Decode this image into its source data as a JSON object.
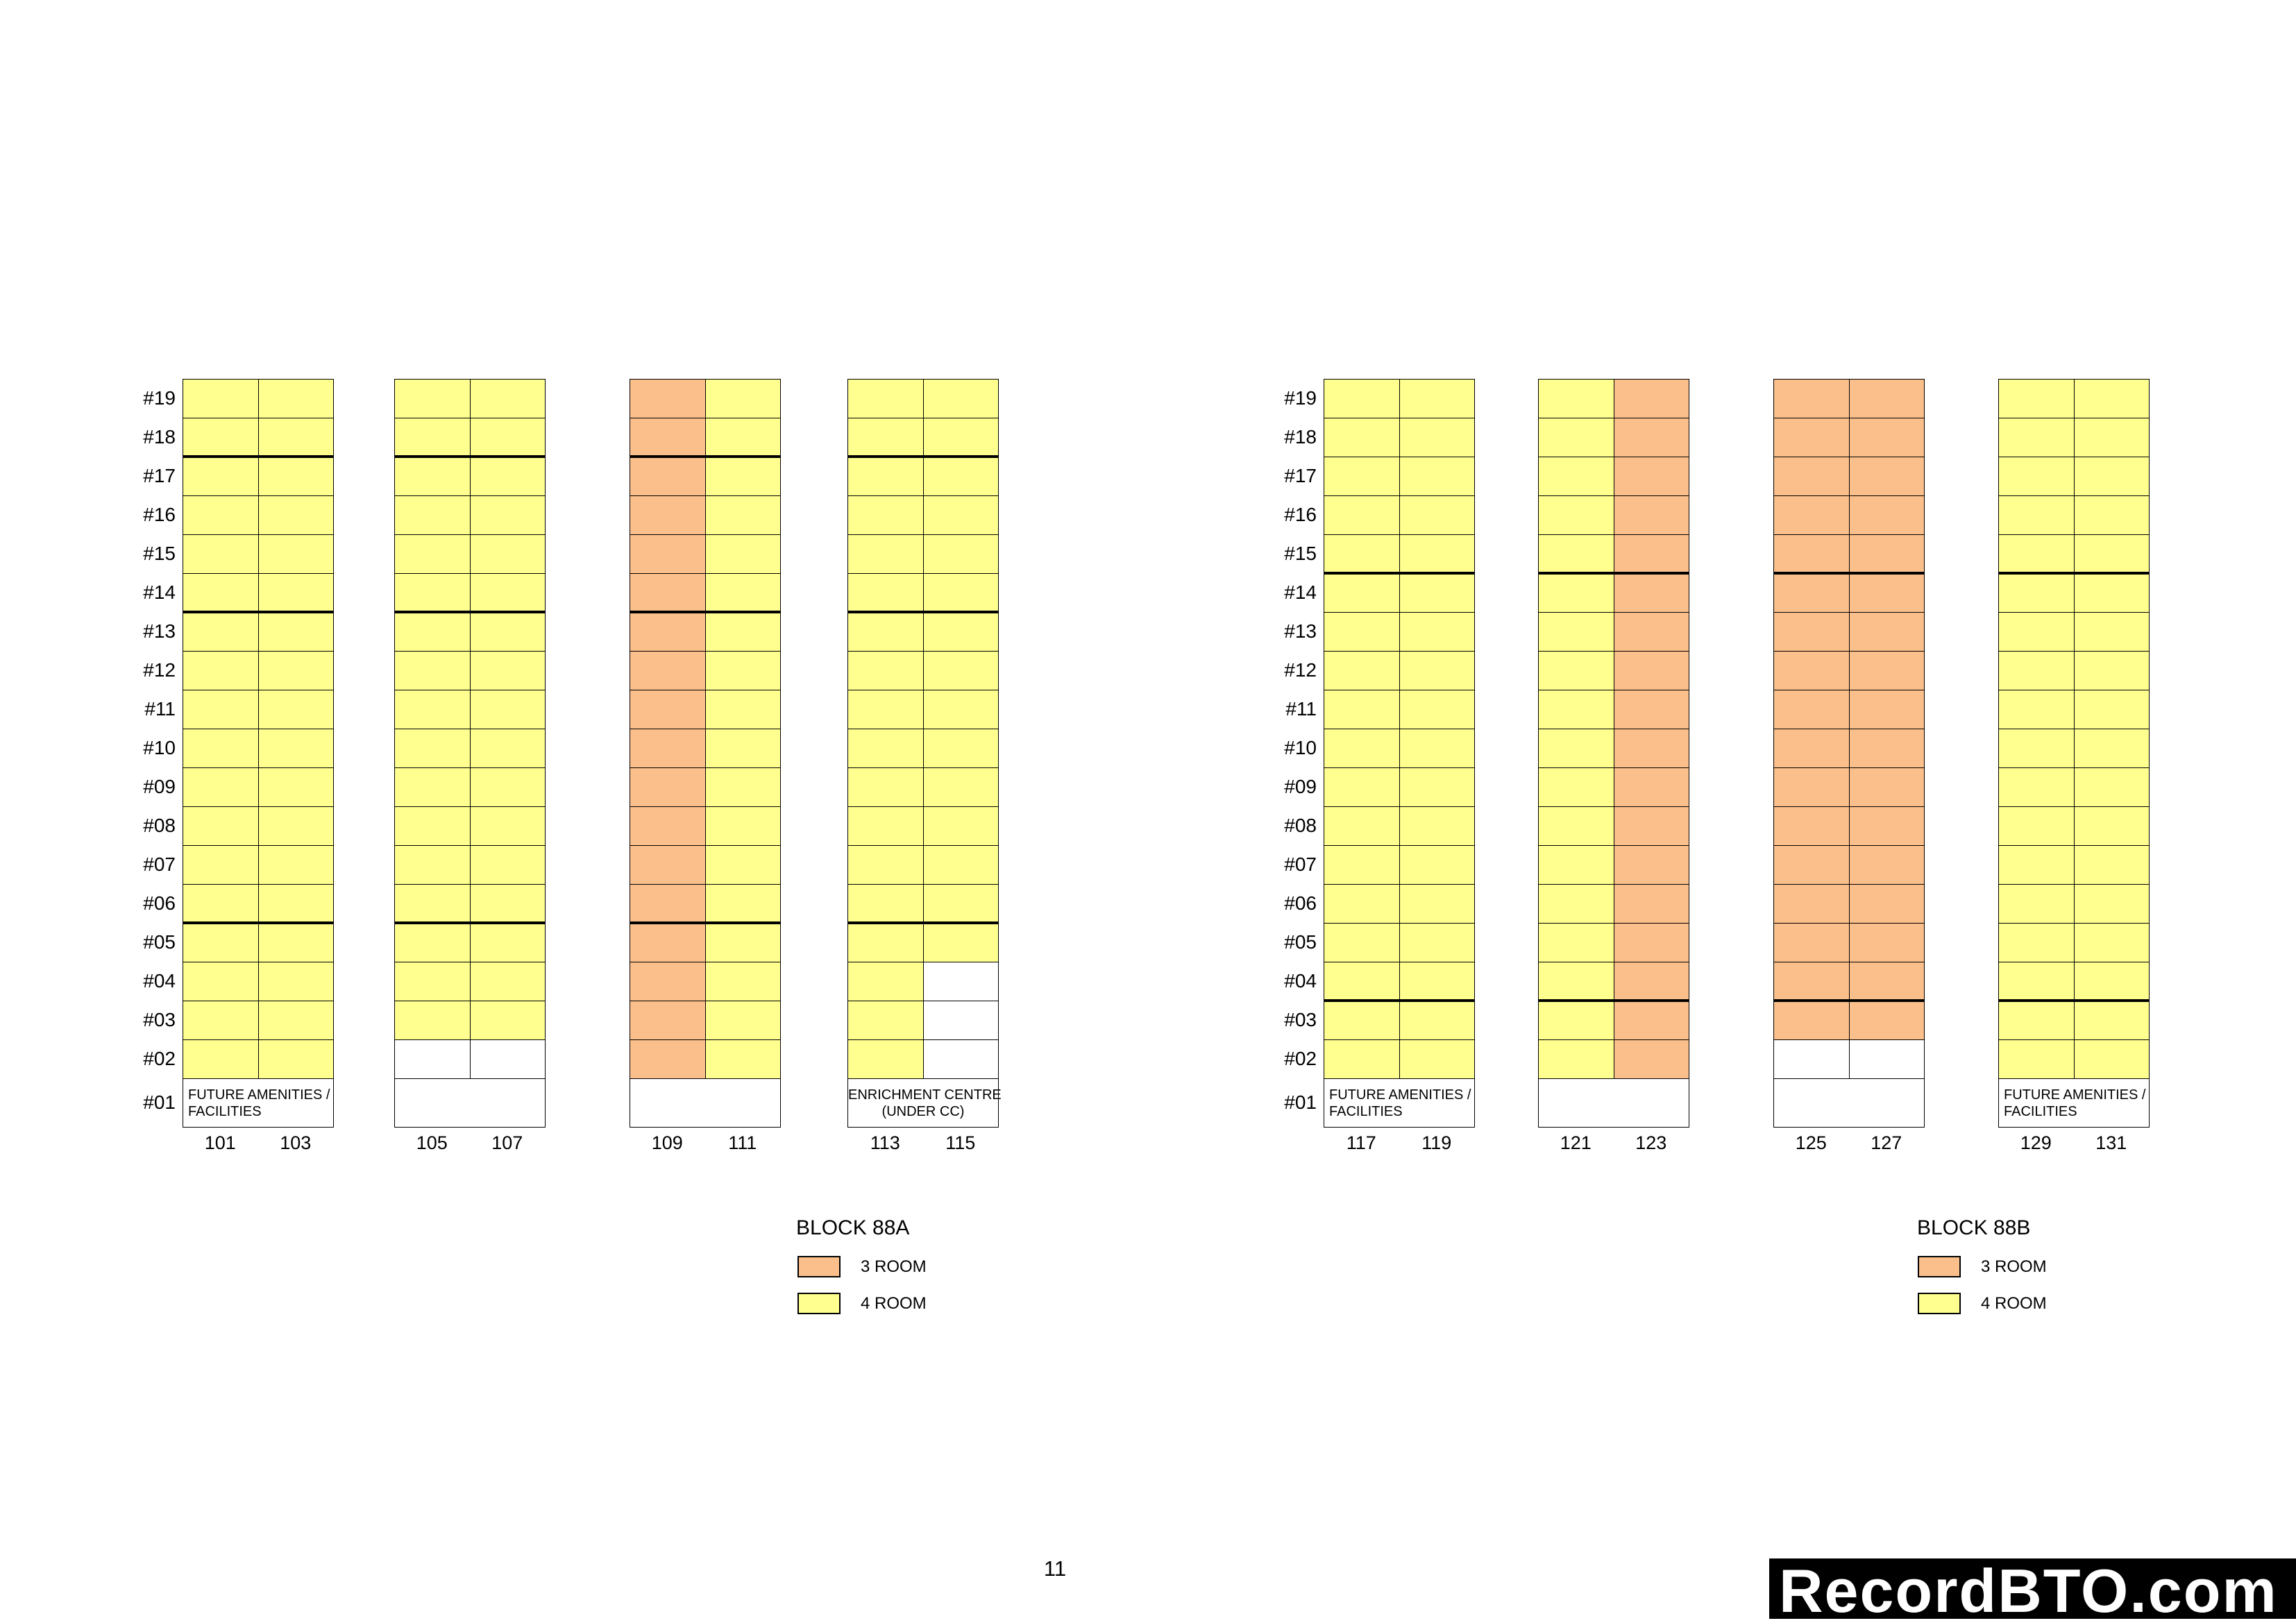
{
  "page": {
    "number": "11",
    "watermark": "RecordBTO.com"
  },
  "floors": [
    "#19",
    "#18",
    "#17",
    "#16",
    "#15",
    "#14",
    "#13",
    "#12",
    "#11",
    "#10",
    "#09",
    "#08",
    "#07",
    "#06",
    "#05",
    "#04",
    "#03",
    "#02",
    "#01"
  ],
  "legend_labels": {
    "room3": "3 ROOM",
    "room4": "4 ROOM"
  },
  "colors": {
    "room3": "#FBBF8B",
    "room4": "#FFFF90",
    "void": "#FFFFFF"
  },
  "blocks": [
    {
      "title": "BLOCK 88A",
      "thick_below_floors": [
        18,
        14,
        6
      ],
      "pairs": [
        {
          "stacks": [
            {
              "id": "101",
              "type": "room4",
              "lowest": 2
            },
            {
              "id": "103",
              "type": "room4",
              "lowest": 2
            }
          ],
          "ground": {
            "lines": [
              "FUTURE AMENITIES /",
              "FACILITIES"
            ],
            "align": "left"
          }
        },
        {
          "stacks": [
            {
              "id": "105",
              "type": "room4",
              "lowest": 3
            },
            {
              "id": "107",
              "type": "room4",
              "lowest": 3
            }
          ],
          "ground": {
            "lines": [],
            "align": "left"
          }
        },
        {
          "stacks": [
            {
              "id": "109",
              "type": "room3",
              "lowest": 2
            },
            {
              "id": "111",
              "type": "room4",
              "lowest": 2
            }
          ],
          "ground": {
            "lines": [],
            "align": "left"
          }
        },
        {
          "stacks": [
            {
              "id": "113",
              "type": "room4",
              "lowest": 2
            },
            {
              "id": "115",
              "type": "room4",
              "lowest": 5
            }
          ],
          "ground": {
            "lines": [
              "ENRICHMENT CENTRE",
              "(UNDER CC)"
            ],
            "align": "center"
          }
        }
      ]
    },
    {
      "title": "BLOCK 88B",
      "thick_below_floors": [
        15,
        4
      ],
      "pairs": [
        {
          "stacks": [
            {
              "id": "117",
              "type": "room4",
              "lowest": 2
            },
            {
              "id": "119",
              "type": "room4",
              "lowest": 2
            }
          ],
          "ground": {
            "lines": [
              "FUTURE AMENITIES /",
              "FACILITIES"
            ],
            "align": "left"
          }
        },
        {
          "stacks": [
            {
              "id": "121",
              "type": "room4",
              "lowest": 2
            },
            {
              "id": "123",
              "type": "room3",
              "lowest": 2
            }
          ],
          "ground": {
            "lines": [],
            "align": "left"
          }
        },
        {
          "stacks": [
            {
              "id": "125",
              "type": "room3",
              "lowest": 3
            },
            {
              "id": "127",
              "type": "room3",
              "lowest": 3
            }
          ],
          "ground": {
            "lines": [],
            "align": "left"
          }
        },
        {
          "stacks": [
            {
              "id": "129",
              "type": "room4",
              "lowest": 2
            },
            {
              "id": "131",
              "type": "room4",
              "lowest": 2
            }
          ],
          "ground": {
            "lines": [
              "FUTURE AMENITIES /",
              "FACILITIES"
            ],
            "align": "left"
          }
        }
      ]
    }
  ]
}
